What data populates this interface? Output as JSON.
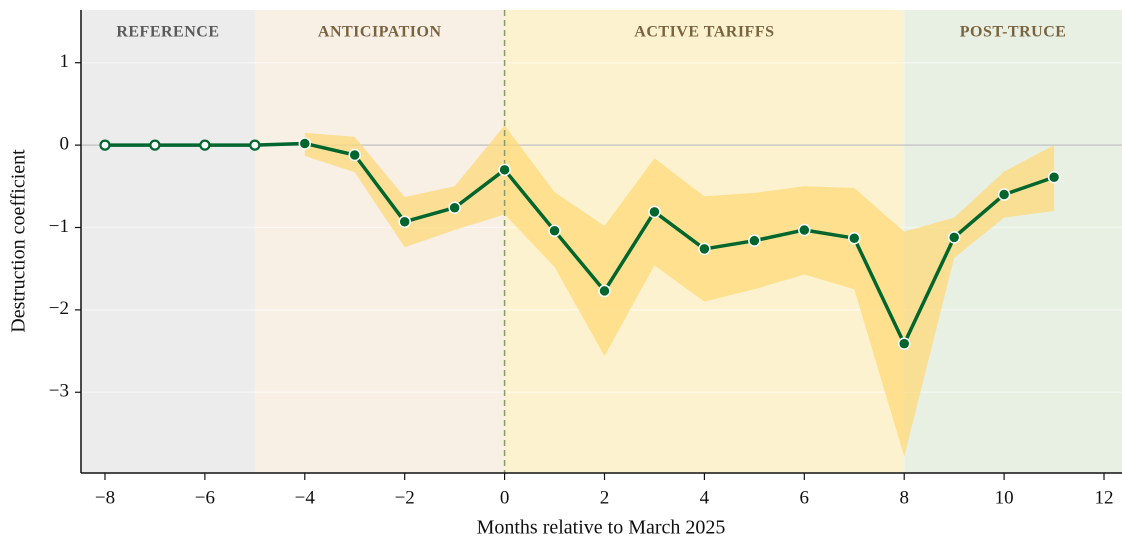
{
  "chart_data": {
    "type": "line",
    "xlabel": "Months relative to March 2025",
    "ylabel": "Destruction coefficient",
    "xlim": [
      -8.48,
      12.36
    ],
    "ylim": [
      -3.98,
      1.64
    ],
    "xticks": [
      {
        "value": -8,
        "label": "−8"
      },
      {
        "value": -6,
        "label": "−6"
      },
      {
        "value": -4,
        "label": "−4"
      },
      {
        "value": -2,
        "label": "−2"
      },
      0,
      2,
      4,
      6,
      8,
      10,
      12
    ],
    "yticks": [
      1,
      0,
      {
        "value": -1,
        "label": "−1"
      },
      {
        "value": -2,
        "label": "−2"
      },
      {
        "value": -3,
        "label": "−3"
      }
    ],
    "grid": true,
    "zero_line": true,
    "event_line": 0,
    "regions": [
      {
        "label": "REFERENCE",
        "from": -8.48,
        "to": -5,
        "color": "#ececec",
        "label_color": "#5a5a5a"
      },
      {
        "label": "ANTICIPATION",
        "from": -5,
        "to": 0,
        "color": "#f8efe5",
        "label_color": "#7a6440"
      },
      {
        "label": "ACTIVE TARIFFS",
        "from": 0,
        "to": 8,
        "color": "#fdf2cf",
        "label_color": "#7a6440"
      },
      {
        "label": "POST-TRUCE",
        "from": 8,
        "to": 12.36,
        "color": "#e8f0e3",
        "label_color": "#7a6440"
      }
    ],
    "band": {
      "color": "#fdd97a",
      "x": [
        -4,
        -3,
        -2,
        -1,
        0,
        1,
        2,
        3,
        4,
        5,
        6,
        7,
        8,
        9,
        10,
        11
      ],
      "upper": [
        0.15,
        0.1,
        -0.63,
        -0.5,
        0.24,
        -0.57,
        -0.98,
        -0.16,
        -0.62,
        -0.58,
        -0.5,
        -0.52,
        -1.05,
        -0.88,
        -0.32,
        0.0
      ],
      "lower": [
        -0.13,
        -0.33,
        -1.24,
        -1.03,
        -0.84,
        -1.48,
        -2.56,
        -1.46,
        -1.9,
        -1.75,
        -1.57,
        -1.75,
        -3.78,
        -1.37,
        -0.88,
        -0.8
      ]
    },
    "series": [
      {
        "color": "#00662e",
        "x": [
          -8,
          -7,
          -6,
          -5,
          -4,
          -3,
          -2,
          -1,
          0,
          1,
          2,
          3,
          4,
          5,
          6,
          7,
          8,
          9,
          10,
          11
        ],
        "values": [
          0,
          0,
          0,
          0,
          0.02,
          -0.12,
          -0.93,
          -0.76,
          -0.3,
          -1.04,
          -1.77,
          -0.81,
          -1.26,
          -1.16,
          -1.03,
          -1.13,
          -2.41,
          -1.12,
          -0.6,
          -0.39
        ],
        "markers": [
          "hollow",
          "hollow",
          "hollow",
          "hollow",
          "filled",
          "filled",
          "filled",
          "filled",
          "filled",
          "filled",
          "filled",
          "filled",
          "filled",
          "filled",
          "filled",
          "filled",
          "filled",
          "filled",
          "filled",
          "filled"
        ]
      }
    ]
  }
}
